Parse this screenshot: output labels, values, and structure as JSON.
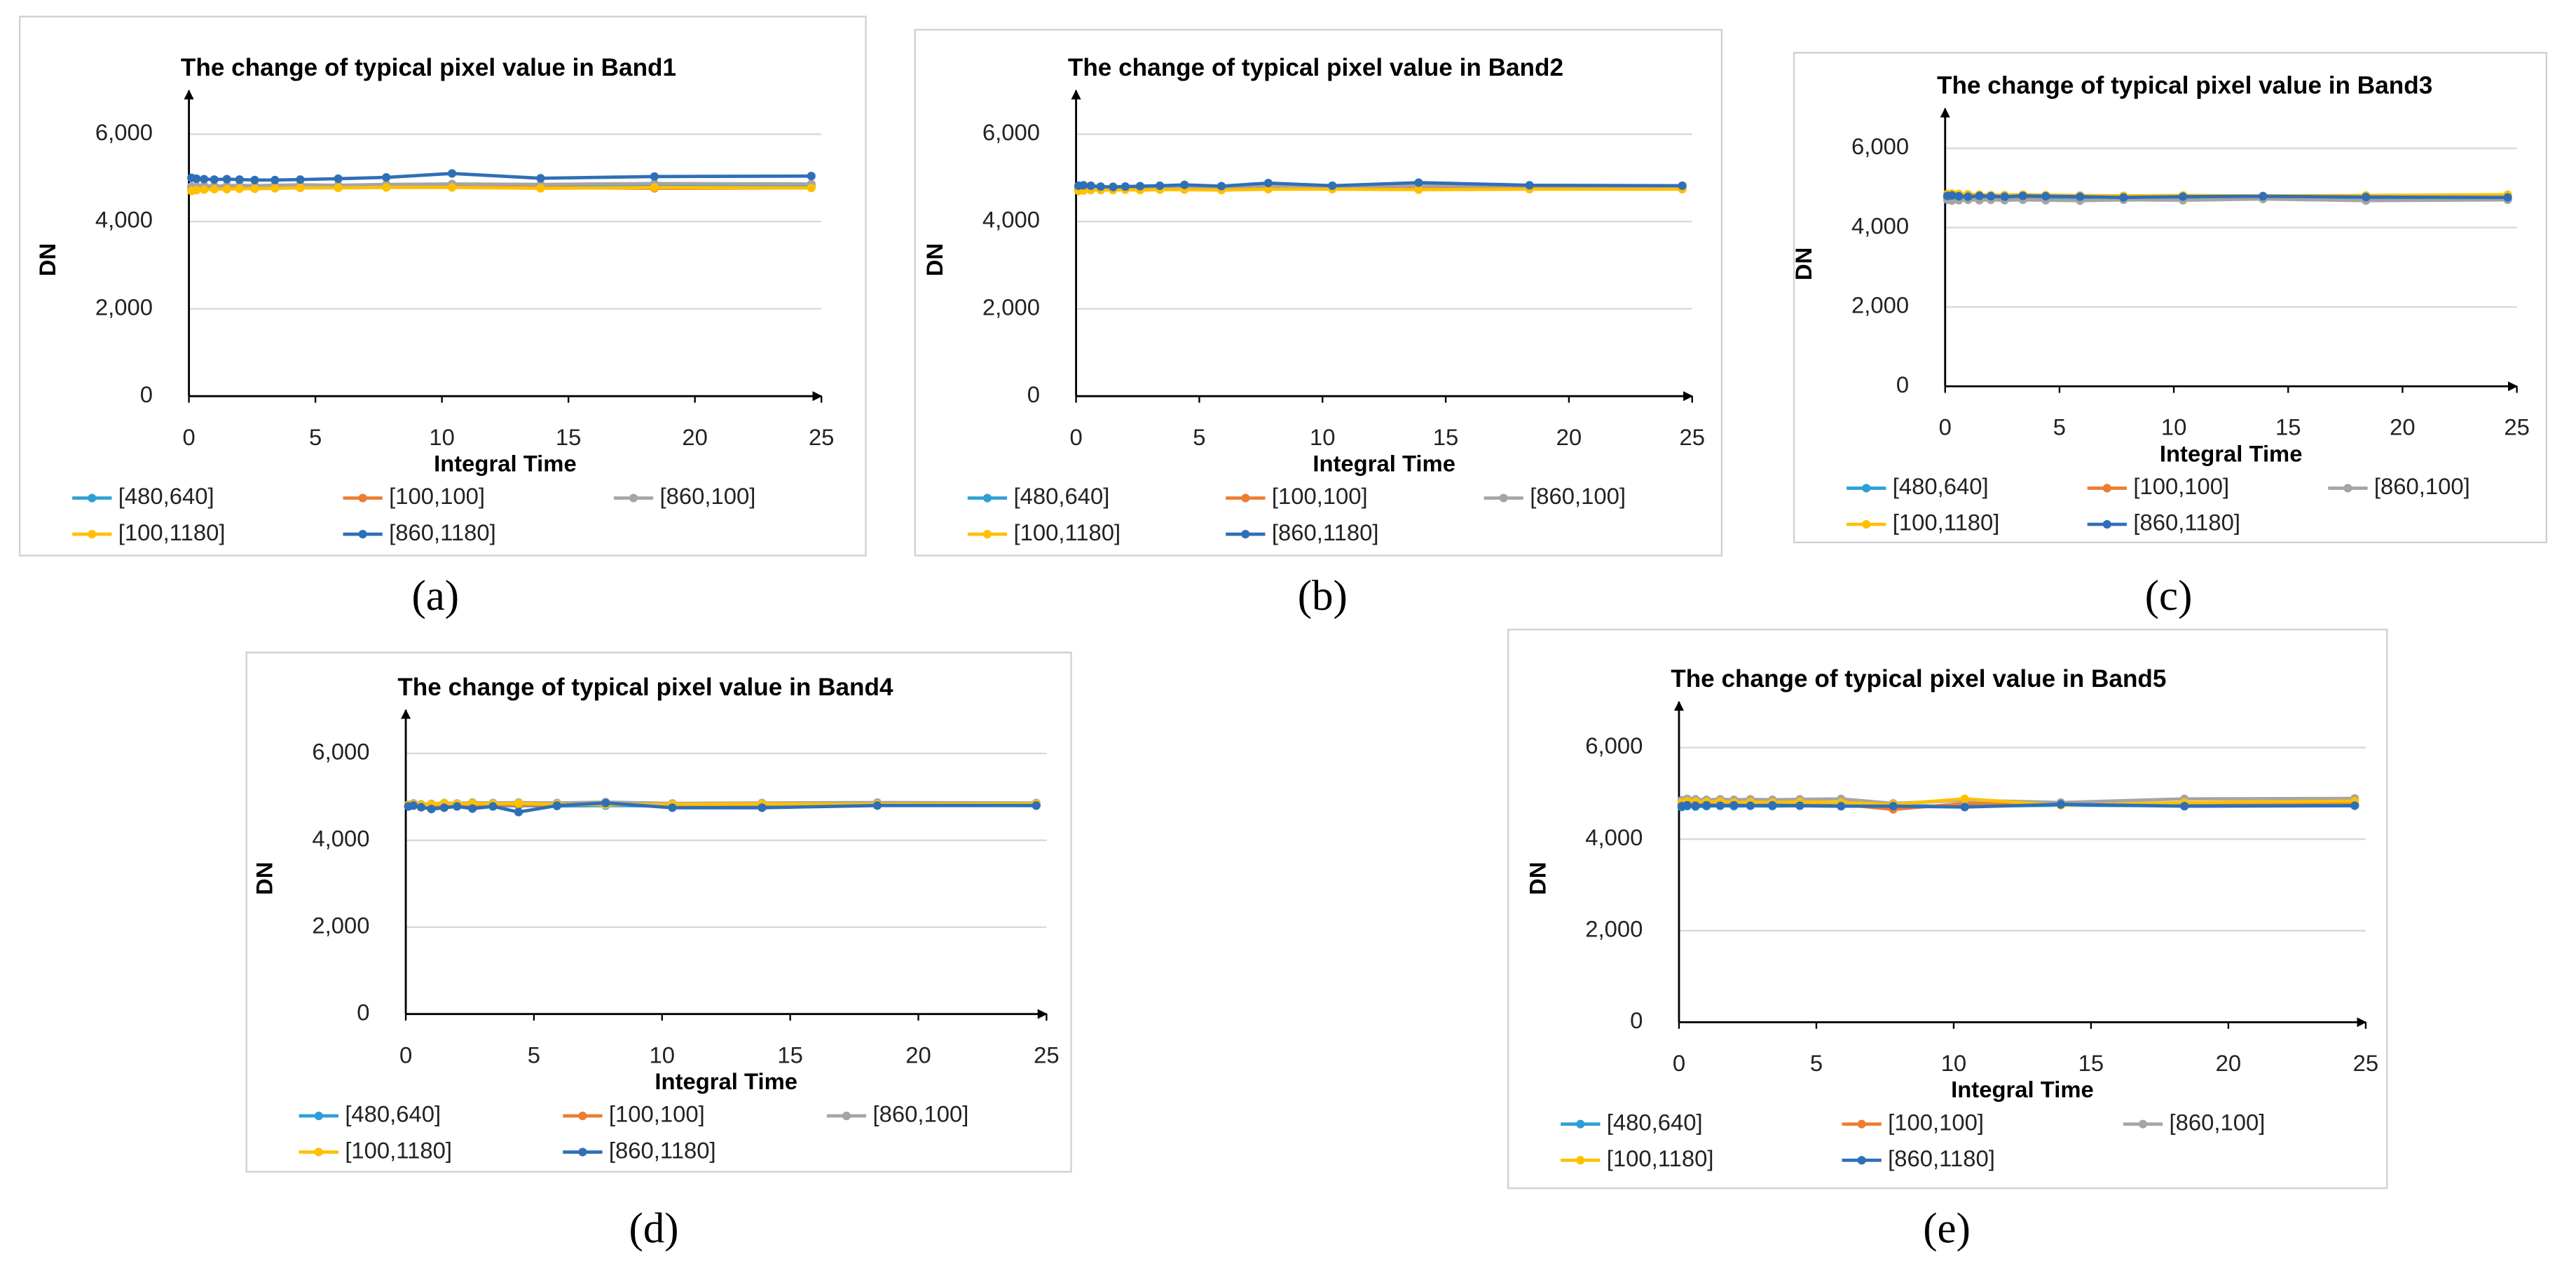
{
  "chart_data": [
    {
      "type": "line",
      "title": "The change of typical pixel value in Band1",
      "caption": "(a)",
      "x_label": "Integral Time",
      "y_label": "DN",
      "x": [
        0.1,
        0.3,
        0.6,
        1,
        1.5,
        2,
        2.6,
        3.4,
        4.4,
        5.9,
        7.8,
        10.4,
        13.9,
        18.4,
        24.6
      ],
      "xlim": [
        0,
        25
      ],
      "xticks": [
        0,
        5,
        10,
        15,
        20,
        25
      ],
      "ylim": [
        0,
        7000
      ],
      "yticks": [
        0,
        {
          "value": 2000,
          "label": "2,000"
        },
        {
          "value": 4000,
          "label": "4,000"
        },
        {
          "value": 6000,
          "label": "6,000"
        }
      ],
      "grid": true,
      "series": [
        {
          "name": "[480,640]",
          "color": "#2e9fd6",
          "values": [
            4800,
            4780,
            4790,
            4800,
            4810,
            4800,
            4810,
            4800,
            4820,
            4780,
            4800,
            4790,
            4810,
            4820,
            4830
          ]
        },
        {
          "name": "[100,100]",
          "color": "#ed7d31",
          "values": [
            4750,
            4760,
            4770,
            4760,
            4770,
            4780,
            4770,
            4780,
            4790,
            4800,
            4790,
            4820,
            4780,
            4760,
            4770
          ]
        },
        {
          "name": "[860,100]",
          "color": "#a5a5a5",
          "values": [
            4800,
            4810,
            4820,
            4810,
            4820,
            4830,
            4820,
            4830,
            4840,
            4830,
            4850,
            4860,
            4850,
            4870,
            4860
          ]
        },
        {
          "name": "[100,1180]",
          "color": "#ffc000",
          "values": [
            4700,
            4720,
            4730,
            4740,
            4740,
            4750,
            4750,
            4760,
            4770,
            4770,
            4780,
            4780,
            4760,
            4780,
            4770
          ]
        },
        {
          "name": "[860,1180]",
          "color": "#2f6fb7",
          "values": [
            5000,
            4980,
            4970,
            4960,
            4970,
            4960,
            4950,
            4950,
            4960,
            4980,
            5010,
            5100,
            4990,
            5030,
            5040
          ]
        }
      ]
    },
    {
      "type": "line",
      "title": "The change of typical pixel value in Band2",
      "caption": "(b)",
      "x_label": "Integral Time",
      "y_label": "DN",
      "x": [
        0.1,
        0.3,
        0.6,
        1,
        1.5,
        2,
        2.6,
        3.4,
        4.4,
        5.9,
        7.8,
        10.4,
        13.9,
        18.4,
        24.6
      ],
      "xlim": [
        0,
        25
      ],
      "xticks": [
        0,
        5,
        10,
        15,
        20,
        25
      ],
      "ylim": [
        0,
        7000
      ],
      "yticks": [
        0,
        {
          "value": 2000,
          "label": "2,000"
        },
        {
          "value": 4000,
          "label": "4,000"
        },
        {
          "value": 6000,
          "label": "6,000"
        }
      ],
      "grid": true,
      "series": [
        {
          "name": "[480,640]",
          "color": "#2e9fd6",
          "values": [
            4780,
            4790,
            4780,
            4790,
            4780,
            4790,
            4790,
            4800,
            4790,
            4800,
            4810,
            4800,
            4800,
            4790,
            4800
          ]
        },
        {
          "name": "[100,100]",
          "color": "#ed7d31",
          "values": [
            4740,
            4750,
            4750,
            4760,
            4750,
            4760,
            4750,
            4760,
            4760,
            4750,
            4760,
            4770,
            4760,
            4770,
            4770
          ]
        },
        {
          "name": "[860,100]",
          "color": "#a5a5a5",
          "values": [
            4790,
            4800,
            4800,
            4790,
            4800,
            4800,
            4810,
            4800,
            4810,
            4800,
            4820,
            4810,
            4820,
            4820,
            4810
          ]
        },
        {
          "name": "[100,1180]",
          "color": "#ffc000",
          "values": [
            4700,
            4710,
            4720,
            4720,
            4720,
            4730,
            4720,
            4730,
            4730,
            4720,
            4740,
            4740,
            4730,
            4740,
            4740
          ]
        },
        {
          "name": "[860,1180]",
          "color": "#2f6fb7",
          "values": [
            4820,
            4830,
            4820,
            4800,
            4790,
            4800,
            4810,
            4820,
            4840,
            4810,
            4880,
            4820,
            4890,
            4830,
            4820
          ]
        }
      ]
    },
    {
      "type": "line",
      "title": "The change of typical pixel value in Band3",
      "caption": "(c)",
      "x_label": "Integral Time",
      "y_label": "DN",
      "x": [
        0.1,
        0.3,
        0.6,
        1,
        1.5,
        2,
        2.6,
        3.4,
        4.4,
        5.9,
        7.8,
        10.4,
        13.9,
        18.4,
        24.6
      ],
      "xlim": [
        0,
        25
      ],
      "xticks": [
        0,
        5,
        10,
        15,
        20,
        25
      ],
      "ylim": [
        0,
        7000
      ],
      "yticks": [
        0,
        {
          "value": 2000,
          "label": "2,000"
        },
        {
          "value": 4000,
          "label": "4,000"
        },
        {
          "value": 6000,
          "label": "6,000"
        }
      ],
      "grid": true,
      "series": [
        {
          "name": "[480,640]",
          "color": "#2e9fd6",
          "values": [
            4750,
            4760,
            4750,
            4760,
            4750,
            4760,
            4750,
            4760,
            4750,
            4760,
            4750,
            4760,
            4770,
            4750,
            4760
          ]
        },
        {
          "name": "[100,100]",
          "color": "#ed7d31",
          "values": [
            4780,
            4790,
            4780,
            4790,
            4780,
            4790,
            4790,
            4780,
            4790,
            4780,
            4790,
            4780,
            4790,
            4780,
            4790
          ]
        },
        {
          "name": "[860,100]",
          "color": "#a5a5a5",
          "values": [
            4700,
            4680,
            4690,
            4700,
            4690,
            4700,
            4690,
            4700,
            4690,
            4680,
            4700,
            4690,
            4720,
            4680,
            4700
          ]
        },
        {
          "name": "[100,1180]",
          "color": "#ffc000",
          "values": [
            4850,
            4860,
            4850,
            4840,
            4830,
            4820,
            4820,
            4830,
            4820,
            4810,
            4800,
            4810,
            4800,
            4810,
            4830
          ]
        },
        {
          "name": "[860,1180]",
          "color": "#2f6fb7",
          "values": [
            4800,
            4810,
            4790,
            4780,
            4800,
            4790,
            4780,
            4800,
            4790,
            4780,
            4760,
            4780,
            4790,
            4770,
            4760
          ]
        }
      ]
    },
    {
      "type": "line",
      "title": "The change of typical pixel value in Band4",
      "caption": "(d)",
      "x_label": "Integral Time",
      "y_label": "DN",
      "x": [
        0.1,
        0.3,
        0.6,
        1,
        1.5,
        2,
        2.6,
        3.4,
        4.4,
        5.9,
        7.8,
        10.4,
        13.9,
        18.4,
        24.6
      ],
      "xlim": [
        0,
        25
      ],
      "xticks": [
        0,
        5,
        10,
        15,
        20,
        25
      ],
      "ylim": [
        0,
        7000
      ],
      "yticks": [
        0,
        {
          "value": 2000,
          "label": "2,000"
        },
        {
          "value": 4000,
          "label": "4,000"
        },
        {
          "value": 6000,
          "label": "6,000"
        }
      ],
      "grid": true,
      "series": [
        {
          "name": "[480,640]",
          "color": "#2e9fd6",
          "values": [
            4780,
            4800,
            4790,
            4780,
            4800,
            4790,
            4800,
            4790,
            4800,
            4790,
            4800,
            4790,
            4800,
            4810,
            4800
          ]
        },
        {
          "name": "[100,100]",
          "color": "#ed7d31",
          "values": [
            4800,
            4810,
            4800,
            4810,
            4820,
            4810,
            4820,
            4810,
            4820,
            4810,
            4830,
            4820,
            4830,
            4820,
            4830
          ]
        },
        {
          "name": "[860,100]",
          "color": "#a5a5a5",
          "values": [
            4820,
            4850,
            4830,
            4840,
            4860,
            4850,
            4870,
            4860,
            4870,
            4860,
            4880,
            4850,
            4860,
            4870,
            4860
          ]
        },
        {
          "name": "[100,1180]",
          "color": "#ffc000",
          "values": [
            4810,
            4830,
            4820,
            4830,
            4850,
            4840,
            4850,
            4840,
            4850,
            4830,
            4820,
            4830,
            4840,
            4830,
            4840
          ]
        },
        {
          "name": "[860,1180]",
          "color": "#2f6fb7",
          "values": [
            4780,
            4800,
            4760,
            4720,
            4750,
            4780,
            4730,
            4780,
            4650,
            4800,
            4860,
            4750,
            4750,
            4800,
            4800
          ]
        }
      ]
    },
    {
      "type": "line",
      "title": "The change of typical pixel value in Band5",
      "caption": "(e)",
      "x_label": "Integral Time",
      "y_label": "DN",
      "x": [
        0.1,
        0.3,
        0.6,
        1,
        1.5,
        2,
        2.6,
        3.4,
        4.4,
        5.9,
        7.8,
        10.4,
        13.9,
        18.4,
        24.6
      ],
      "xlim": [
        0,
        25
      ],
      "xticks": [
        0,
        5,
        10,
        15,
        20,
        25
      ],
      "ylim": [
        0,
        7000
      ],
      "yticks": [
        0,
        {
          "value": 2000,
          "label": "2,000"
        },
        {
          "value": 4000,
          "label": "4,000"
        },
        {
          "value": 6000,
          "label": "6,000"
        }
      ],
      "grid": true,
      "series": [
        {
          "name": "[480,640]",
          "color": "#2e9fd6",
          "values": [
            4700,
            4720,
            4710,
            4720,
            4730,
            4720,
            4730,
            4720,
            4730,
            4720,
            4730,
            4720,
            4740,
            4730,
            4740
          ]
        },
        {
          "name": "[100,100]",
          "color": "#ed7d31",
          "values": [
            4750,
            4760,
            4750,
            4760,
            4770,
            4760,
            4770,
            4760,
            4770,
            4760,
            4650,
            4780,
            4760,
            4760,
            4770
          ]
        },
        {
          "name": "[860,100]",
          "color": "#a5a5a5",
          "values": [
            4850,
            4880,
            4870,
            4860,
            4870,
            4860,
            4870,
            4860,
            4870,
            4880,
            4780,
            4850,
            4800,
            4880,
            4890
          ]
        },
        {
          "name": "[100,1180]",
          "color": "#ffc000",
          "values": [
            4800,
            4830,
            4820,
            4810,
            4820,
            4800,
            4810,
            4800,
            4810,
            4800,
            4760,
            4880,
            4740,
            4800,
            4830
          ]
        },
        {
          "name": "[860,1180]",
          "color": "#2f6fb7",
          "values": [
            4720,
            4740,
            4730,
            4740,
            4730,
            4740,
            4730,
            4740,
            4730,
            4720,
            4720,
            4700,
            4760,
            4720,
            4730
          ]
        }
      ]
    }
  ]
}
